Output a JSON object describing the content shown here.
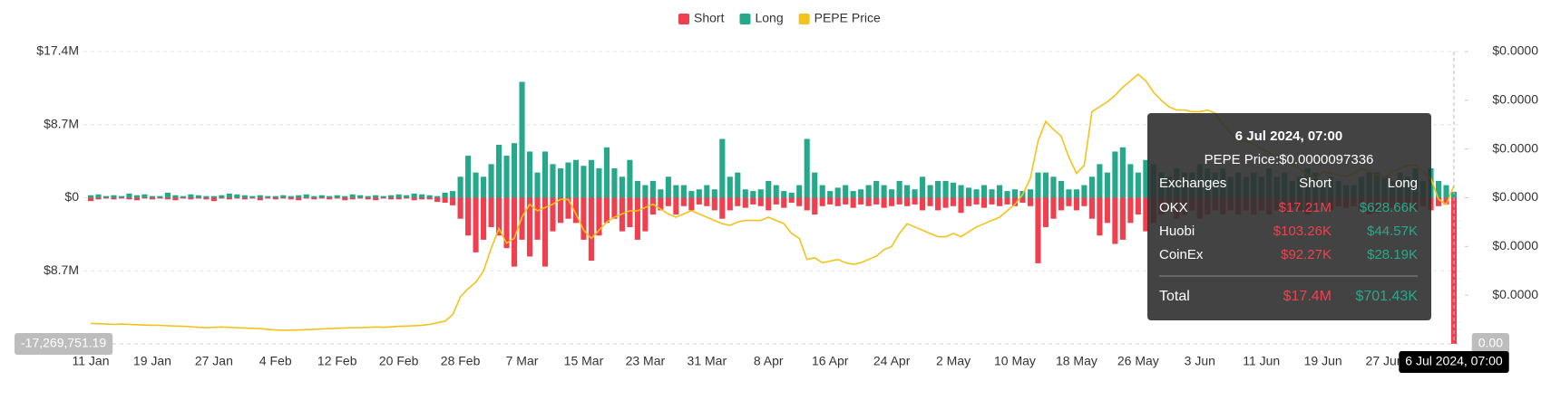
{
  "chart_data": {
    "type": "bar",
    "categories": [
      "11 Jan",
      null,
      null,
      null,
      null,
      null,
      null,
      null,
      "19 Jan",
      null,
      null,
      null,
      null,
      null,
      null,
      null,
      "27 Jan",
      null,
      null,
      null,
      null,
      null,
      null,
      null,
      "4 Feb",
      null,
      null,
      null,
      null,
      null,
      null,
      null,
      "12 Feb",
      null,
      null,
      null,
      null,
      null,
      null,
      null,
      "20 Feb",
      null,
      null,
      null,
      null,
      null,
      null,
      null,
      "28 Feb",
      null,
      null,
      null,
      null,
      null,
      null,
      null,
      "7 Mar",
      null,
      null,
      null,
      null,
      null,
      null,
      null,
      "15 Mar",
      null,
      null,
      null,
      null,
      null,
      null,
      null,
      "23 Mar",
      null,
      null,
      null,
      null,
      null,
      null,
      null,
      "31 Mar",
      null,
      null,
      null,
      null,
      null,
      null,
      null,
      "8 Apr",
      null,
      null,
      null,
      null,
      null,
      null,
      null,
      "16 Apr",
      null,
      null,
      null,
      null,
      null,
      null,
      null,
      "24 Apr",
      null,
      null,
      null,
      null,
      null,
      null,
      null,
      "2 May",
      null,
      null,
      null,
      null,
      null,
      null,
      null,
      "10 May",
      null,
      null,
      null,
      null,
      null,
      null,
      null,
      "18 May",
      null,
      null,
      null,
      null,
      null,
      null,
      null,
      "26 May",
      null,
      null,
      null,
      null,
      null,
      null,
      null,
      "3 Jun",
      null,
      null,
      null,
      null,
      null,
      null,
      null,
      "11 Jun",
      null,
      null,
      null,
      null,
      null,
      null,
      null,
      "19 Jun",
      null,
      null,
      null,
      null,
      null,
      null,
      null,
      "27 Jun",
      null,
      null,
      null,
      null,
      null,
      null,
      null,
      null,
      null
    ],
    "series": [
      {
        "name": "Short",
        "color": "#f0404f",
        "values": [
          -400000.0,
          -200000.0,
          -100000.0,
          -200000.0,
          -100000.0,
          -200000.0,
          -300000.0,
          -100000.0,
          -200000.0,
          -100000.0,
          -200000.0,
          -300000.0,
          -100000.0,
          -200000.0,
          -100000.0,
          -200000.0,
          -400000.0,
          -100000.0,
          -200000.0,
          -100000.0,
          -200000.0,
          -100000.0,
          -300000.0,
          -100000.0,
          -200000.0,
          -100000.0,
          -200000.0,
          -300000.0,
          -100000.0,
          -200000.0,
          -100000.0,
          -200000.0,
          -100000.0,
          -300000.0,
          -200000.0,
          -100000.0,
          -200000.0,
          -300000.0,
          -100000.0,
          -200000.0,
          -200000.0,
          -100000.0,
          -300000.0,
          -200000.0,
          -200000.0,
          -500000.0,
          -600000.0,
          -900000.0,
          -2500000.0,
          -4500000.0,
          -6500000.0,
          -5000000.0,
          -3500000.0,
          -4500000.0,
          -6000000.0,
          -8200000.0,
          -5000000.0,
          -7000000.0,
          -5000000.0,
          -8200000.0,
          -4000000.0,
          -3000000.0,
          -2500000.0,
          -3000000.0,
          -5000000.0,
          -7500000.0,
          -4500000.0,
          -3000000.0,
          -2500000.0,
          -4000000.0,
          -3500000.0,
          -5000000.0,
          -4000000.0,
          -2000000.0,
          -1500000.0,
          -1000000.0,
          -2000000.0,
          -1000000.0,
          -1500000.0,
          -800000.0,
          -1000000.0,
          -1500000.0,
          -2500000.0,
          -1500000.0,
          -1000000.0,
          -1200000.0,
          -800000.0,
          -1000000.0,
          -1500000.0,
          -800000.0,
          -1200000.0,
          -600000.0,
          -1000000.0,
          -1500000.0,
          -2000000.0,
          -1000000.0,
          -800000.0,
          -1000000.0,
          -800000.0,
          -1200000.0,
          -800000.0,
          -1000000.0,
          -800000.0,
          -1200000.0,
          -1000000.0,
          -800000.0,
          -1000000.0,
          -800000.0,
          -1500000.0,
          -1000000.0,
          -1500000.0,
          -1200000.0,
          -1000000.0,
          -1800000.0,
          -1000000.0,
          -800000.0,
          -1200000.0,
          -800000.0,
          -1000000.0,
          -800000.0,
          -1000000.0,
          -600000.0,
          -1000000.0,
          -7800000.0,
          -3500000.0,
          -2500000.0,
          -1500000.0,
          -1000000.0,
          -1500000.0,
          -1000000.0,
          -2500000.0,
          -4500000.0,
          -3000000.0,
          -5500000.0,
          -5000000.0,
          -3000000.0,
          -2000000.0,
          -4000000.0,
          -3000000.0,
          -2000000.0,
          -1500000.0,
          -2500000.0,
          -2000000.0,
          -1500000.0,
          -2500000.0,
          -2000000.0,
          -1500000.0,
          -2000000.0,
          -1500000.0,
          -2000000.0,
          -1500000.0,
          -2000000.0,
          -1500000.0,
          -2000000.0,
          -1500000.0,
          -1800000.0,
          -1200000.0,
          -1500000.0,
          -2000000.0,
          -1500000.0,
          -1200000.0,
          -1500000.0,
          -1000000.0,
          -1200000.0,
          -1000000.0,
          -1500000.0,
          -2000000.0,
          -1800000.0,
          -1500000.0,
          -1200000.0,
          -1500000.0,
          -1200000.0,
          -1500000.0,
          -1000000.0,
          -1500000.0,
          -1000000.0,
          -800000.0,
          -17400000
        ]
      },
      {
        "name": "Long",
        "color": "#26a98b",
        "values": [
          300000.0,
          400000.0,
          200000.0,
          300000.0,
          200000.0,
          500000.0,
          300000.0,
          400000.0,
          200000.0,
          200000.0,
          600000.0,
          300000.0,
          200000.0,
          400000.0,
          300000.0,
          200000.0,
          200000.0,
          300000.0,
          500000.0,
          400000.0,
          300000.0,
          200000.0,
          300000.0,
          200000.0,
          200000.0,
          300000.0,
          200000.0,
          300000.0,
          400000.0,
          200000.0,
          300000.0,
          200000.0,
          300000.0,
          200000.0,
          400000.0,
          300000.0,
          200000.0,
          300000.0,
          200000.0,
          300000.0,
          400000.0,
          300000.0,
          500000.0,
          400000.0,
          300000.0,
          200000.0,
          600000.0,
          800000.0,
          2500000.0,
          5000000.0,
          3000000.0,
          2500000.0,
          4000000.0,
          6300000.0,
          5000000.0,
          6500000.0,
          13800000.0,
          5500000.0,
          3000000.0,
          5500000.0,
          4000000.0,
          3500000.0,
          4200000.0,
          4500000.0,
          3800000.0,
          4500000.0,
          3500000.0,
          6000000.0,
          3500000.0,
          2500000.0,
          4500000.0,
          2000000.0,
          1500000.0,
          2000000.0,
          1000000.0,
          2500000.0,
          1500000.0,
          1500000.0,
          800000.0,
          1000000.0,
          1500000.0,
          1000000.0,
          7000000.0,
          2500000.0,
          3000000.0,
          1000000.0,
          800000.0,
          1000000.0,
          2000000.0,
          1500000.0,
          800000.0,
          600000.0,
          1500000.0,
          7000000.0,
          3000000.0,
          1500000.0,
          800000.0,
          1200000.0,
          1500000.0,
          800000.0,
          1000000.0,
          1500000.0,
          2000000.0,
          1500000.0,
          1000000.0,
          2000000.0,
          1500000.0,
          1000000.0,
          2500000.0,
          1500000.0,
          2000000.0,
          2000000.0,
          1800000.0,
          1500000.0,
          1200000.0,
          1000000.0,
          1500000.0,
          1000000.0,
          1500000.0,
          800000.0,
          1000000.0,
          800000.0,
          1000000.0,
          3000000.0,
          3000000.0,
          2500000.0,
          2000000.0,
          1000000.0,
          1000000.0,
          1500000.0,
          2500000.0,
          4000000.0,
          3000000.0,
          5500000.0,
          6000000.0,
          4000000.0,
          3000000.0,
          4500000.0,
          4000000.0,
          3000000.0,
          2500000.0,
          3500000.0,
          3000000.0,
          3000000.0,
          4000000.0,
          3500000.0,
          3000000.0,
          3500000.0,
          2500000.0,
          3000000.0,
          2500000.0,
          3000000.0,
          2500000.0,
          3500000.0,
          2500000.0,
          3000000.0,
          2000000.0,
          2500000.0,
          3500000.0,
          3000000.0,
          2000000.0,
          2500000.0,
          2000000.0,
          1500000.0,
          1500000.0,
          2500000.0,
          3000000.0,
          3000000.0,
          2500000.0,
          2000000.0,
          3000000.0,
          2500000.0,
          3500000.0,
          2000000.0,
          3500000.0,
          2000000.0,
          1500000.0,
          701430
        ]
      },
      {
        "name": "PEPE Price",
        "color": "#f2c31b",
        "type": "line",
        "axis": "y2",
        "values": [
          1.26e-06,
          1.24e-06,
          1.22e-06,
          1.2e-06,
          1.22e-06,
          1.2e-06,
          1.18e-06,
          1.16e-06,
          1.15e-06,
          1.14e-06,
          1.12e-06,
          1.1e-06,
          1.08e-06,
          1.06e-06,
          1.02e-06,
          1e-06,
          1.02e-06,
          1.04e-06,
          1.02e-06,
          1e-06,
          9.8e-07,
          9.6e-07,
          9.4e-07,
          9e-07,
          8.6e-07,
          8.4e-07,
          8.4e-07,
          8.6e-07,
          8.8e-07,
          9e-07,
          9.2e-07,
          9.4e-07,
          9.6e-07,
          9.8e-07,
          1e-06,
          1e-06,
          1.02e-06,
          1.04e-06,
          1.02e-06,
          1.05e-06,
          1.08e-06,
          1.1e-06,
          1.12e-06,
          1.15e-06,
          1.2e-06,
          1.3e-06,
          1.4e-06,
          1.8e-06,
          2.9e-06,
          3.4e-06,
          3.8e-06,
          4.5e-06,
          5.9e-06,
          7.1e-06,
          6.2e-06,
          6.5e-06,
          7.8e-06,
          8.6e-06,
          8.2e-06,
          8.4e-06,
          8.6e-06,
          8.9e-06,
          8.9e-06,
          8e-06,
          7e-06,
          6.5e-06,
          7e-06,
          7.5e-06,
          7.8e-06,
          8e-06,
          8.2e-06,
          8.2e-06,
          8.4e-06,
          8.6e-06,
          8.3e-06,
          8e-06,
          7.8e-06,
          8e-06,
          8.2e-06,
          8e-06,
          7.8e-06,
          7.6e-06,
          7.4e-06,
          7.3e-06,
          7.5e-06,
          7.6e-06,
          7.6e-06,
          7.6e-06,
          7.8e-06,
          7.6e-06,
          7.4e-06,
          6.8e-06,
          6.5e-06,
          5.2e-06,
          5.3e-06,
          5e-06,
          5.1e-06,
          5.2e-06,
          5e-06,
          4.9e-06,
          5e-06,
          5.2e-06,
          5.4e-06,
          5.8e-06,
          6e-06,
          6.8e-06,
          7.4e-06,
          7.2e-06,
          7e-06,
          6.8e-06,
          6.6e-06,
          6.6e-06,
          6.8e-06,
          6.6e-06,
          6.9e-06,
          7.2e-06,
          7.4e-06,
          7.6e-06,
          7.8e-06,
          8.2e-06,
          8.6e-06,
          9.2e-06,
          1.02e-05,
          1.25e-05,
          1.37e-05,
          1.32e-05,
          1.28e-05,
          1.15e-05,
          1.05e-05,
          1.1e-05,
          1.43e-05,
          1.46e-05,
          1.49e-05,
          1.53e-05,
          1.58e-05,
          1.62e-05,
          1.66e-05,
          1.62e-05,
          1.55e-05,
          1.5e-05,
          1.46e-05,
          1.44e-05,
          1.44e-05,
          1.43e-05,
          1.43e-05,
          1.44e-05,
          1.42e-05,
          1.35e-05,
          1.3e-05,
          1.25e-05,
          1.25e-05,
          1.23e-05,
          1.2e-05,
          1.18e-05,
          1.15e-05,
          1.13e-05,
          1.1e-05,
          1.08e-05,
          1.04e-05,
          1.02e-05,
          1.06e-05,
          1.05e-05,
          1.04e-05,
          1.03e-05,
          1.05e-05,
          1.08e-05,
          1.06e-05,
          1.04e-05,
          1.02e-05,
          1.06e-05,
          1.08e-05,
          1.1e-05,
          1.1e-05,
          1.06e-05,
          1.02e-05,
          8.9e-06,
          8.6e-06,
          9.7336e-06
        ]
      }
    ],
    "ylim": [
      -17400000,
      17400000
    ],
    "yticks": [
      {
        "value": 17400000,
        "label": "$17.4M"
      },
      {
        "value": 8700000,
        "label": "$8.7M"
      },
      {
        "value": 0,
        "label": "$0"
      },
      {
        "value": -8700000,
        "label": "$8.7M"
      }
    ],
    "y2lim": [
      0,
      1.8e-05
    ],
    "y2ticks": [
      {
        "value": 1.8e-05,
        "label": "$0.0000"
      },
      {
        "value": 1.5e-05,
        "label": "$0.0000"
      },
      {
        "value": 1.2e-05,
        "label": "$0.0000"
      },
      {
        "value": 9e-06,
        "label": "$0.0000"
      },
      {
        "value": 6e-06,
        "label": "$0.0000"
      },
      {
        "value": 3e-06,
        "label": "$0.0000"
      }
    ],
    "grid": true,
    "legend": "top",
    "crosshair": {
      "y_label": "-17,269,751.19",
      "y2_label": "0.00",
      "x_label": "6 Jul 2024, 07:00"
    },
    "tooltip": {
      "title": "6 Jul 2024, 07:00",
      "price": "PEPE Price:$0.0000097336",
      "columns": [
        "Exchanges",
        "Short",
        "Long"
      ],
      "rows": [
        [
          "OKX",
          "$17.21M",
          "$628.66K"
        ],
        [
          "Huobi",
          "$103.26K",
          "$44.57K"
        ],
        [
          "CoinEx",
          "$92.27K",
          "$28.19K"
        ]
      ],
      "total": [
        "Total",
        "$17.4M",
        "$701.43K"
      ]
    }
  }
}
